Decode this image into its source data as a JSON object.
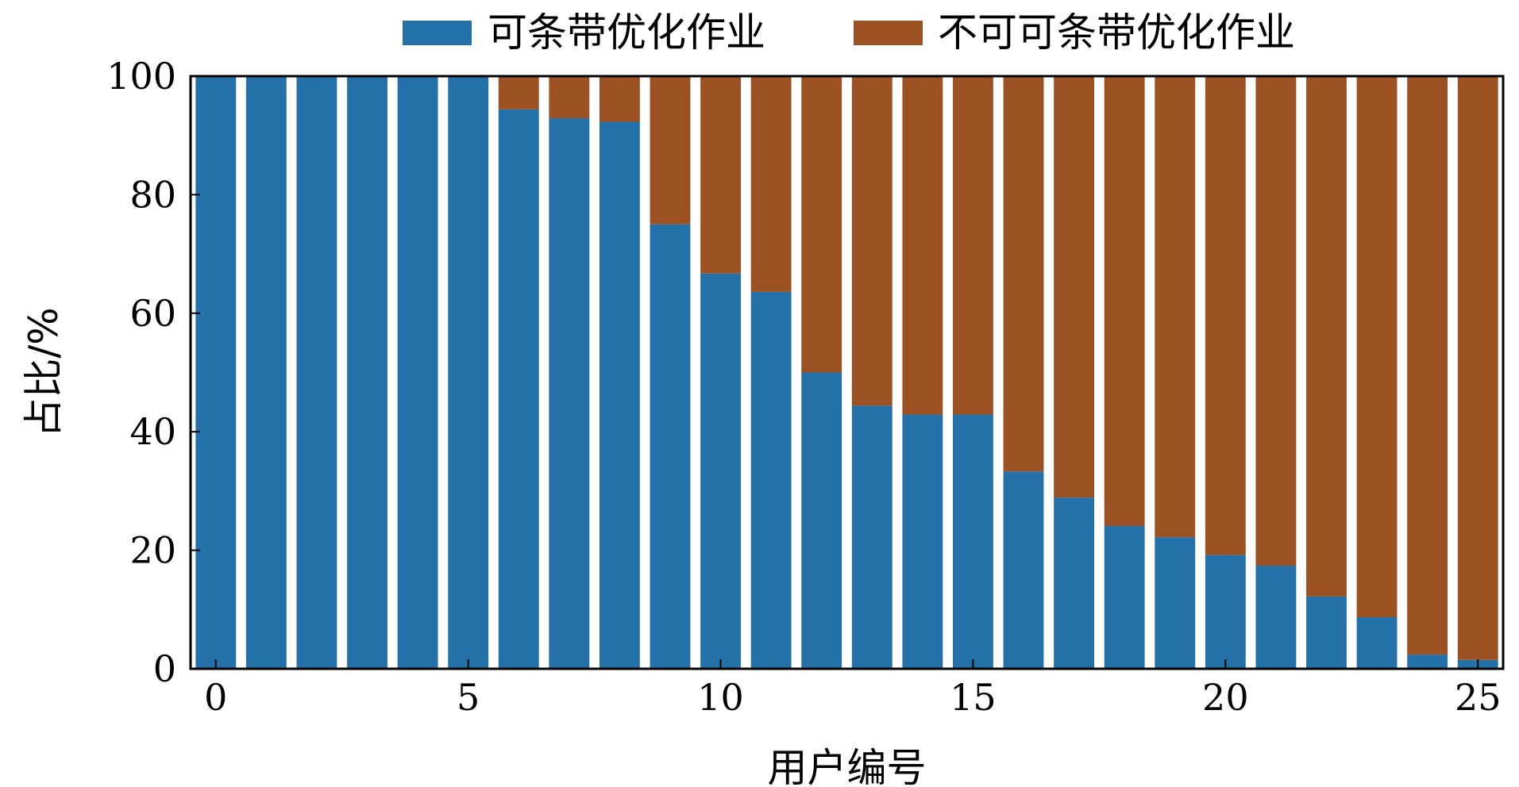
{
  "chart_data": {
    "type": "bar",
    "stacked": true,
    "x": [
      0,
      1,
      2,
      3,
      4,
      5,
      6,
      7,
      8,
      9,
      10,
      11,
      12,
      13,
      14,
      15,
      16,
      17,
      18,
      19,
      20,
      21,
      22,
      23,
      24,
      25
    ],
    "series": [
      {
        "name": "可条带优化作业",
        "color": "#2471a9",
        "values": [
          100,
          100,
          100,
          100,
          100,
          100,
          94.4,
          92.9,
          92.3,
          75.0,
          66.7,
          63.6,
          50.0,
          44.4,
          42.9,
          42.9,
          33.3,
          28.9,
          24.1,
          22.2,
          19.2,
          17.4,
          12.2,
          8.7,
          2.4,
          1.5
        ]
      },
      {
        "name": "不可可条带优化作业",
        "color": "#9b5122",
        "values": [
          0,
          0,
          0,
          0,
          0,
          0,
          5.6,
          7.1,
          7.7,
          25.0,
          33.3,
          36.4,
          50.0,
          55.6,
          57.1,
          57.1,
          66.7,
          71.1,
          75.9,
          77.8,
          80.8,
          82.6,
          87.8,
          91.3,
          97.6,
          98.5
        ]
      }
    ],
    "xticks": [
      0,
      5,
      10,
      15,
      20,
      25
    ],
    "yticks": [
      0,
      20,
      40,
      60,
      80,
      100
    ],
    "xlim": [
      -0.5,
      25.5
    ],
    "ylim": [
      0,
      100
    ],
    "xlabel": "用户编号",
    "ylabel": "占比/%",
    "legend_position": "top",
    "grid": false
  }
}
